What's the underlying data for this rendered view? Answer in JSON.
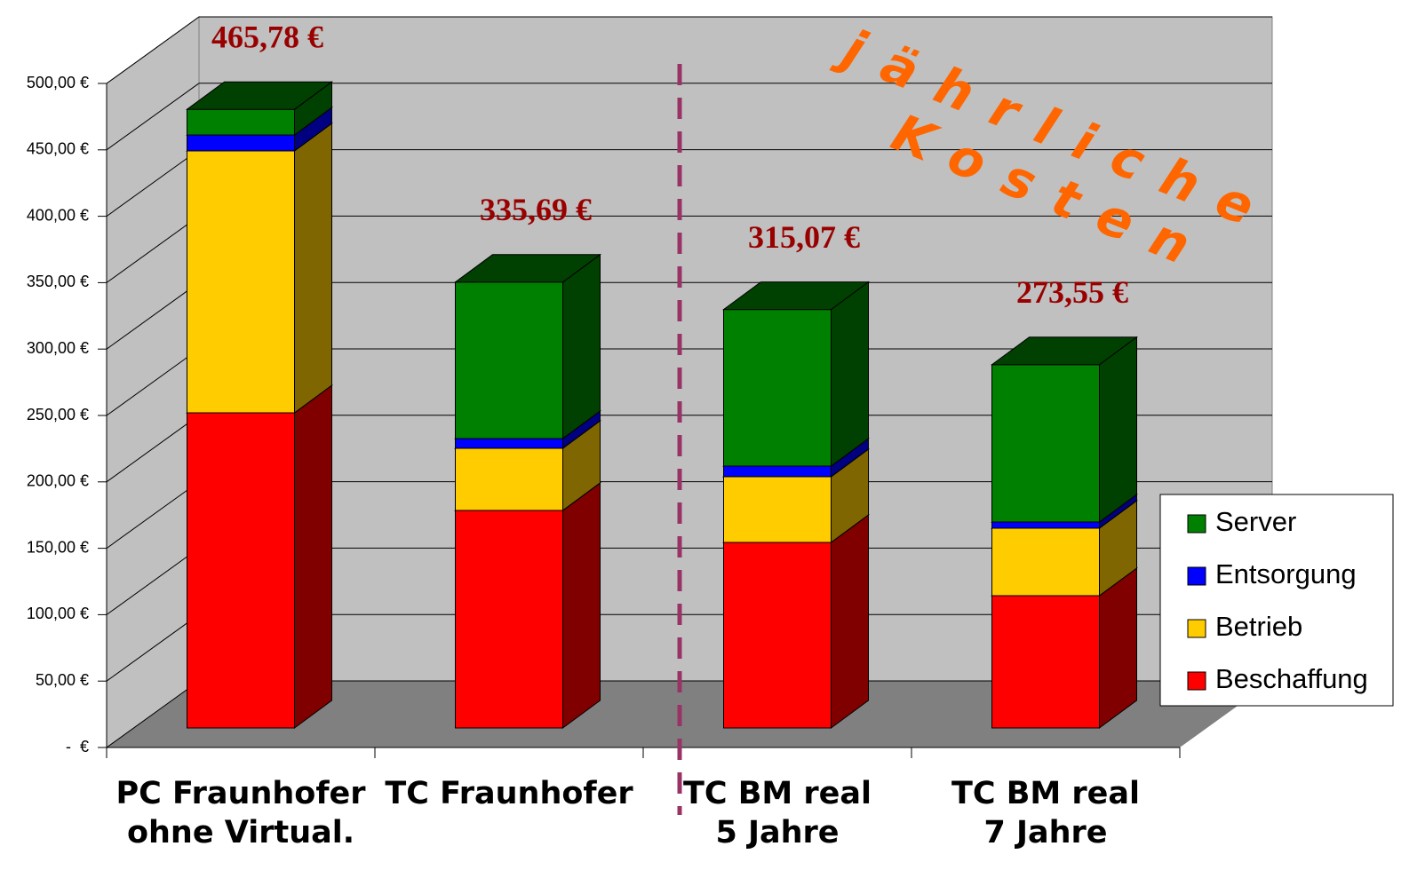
{
  "chart_data": {
    "type": "bar3d_stacked",
    "categories": [
      "PC Fraunhofer\nohne Virtual.",
      "TC Fraunhofer",
      "TC BM real\n5 Jahre",
      "TC BM real\n7 Jahre"
    ],
    "series": [
      {
        "name": "Beschaffung",
        "color": "#ff0000",
        "values": [
          237.3,
          163.8,
          139.7,
          99.6
        ]
      },
      {
        "name": "Betrieb",
        "color": "#ffcc00",
        "values": [
          197.2,
          46.8,
          49.5,
          50.8
        ]
      },
      {
        "name": "Entsorgung",
        "color": "#0000ff",
        "values": [
          12.0,
          7.3,
          8.0,
          4.7
        ]
      },
      {
        "name": "Server",
        "color": "#008000",
        "values": [
          19.28,
          117.79,
          117.87,
          118.45
        ]
      }
    ],
    "totals": [
      465.78,
      335.69,
      315.07,
      273.55
    ],
    "total_labels": [
      "465,78 €",
      "335,69 €",
      "315,07 €",
      "273,55 €"
    ],
    "annotations": [
      "jährliche",
      "Kosten"
    ],
    "ylim": [
      0,
      500
    ],
    "yticks": [
      {
        "value": 0,
        "label": "-  €"
      },
      {
        "value": 50,
        "label": "50,00 €"
      },
      {
        "value": 100,
        "label": "100,00 €"
      },
      {
        "value": 150,
        "label": "150,00 €"
      },
      {
        "value": 200,
        "label": "200,00 €"
      },
      {
        "value": 250,
        "label": "250,00 €"
      },
      {
        "value": 300,
        "label": "300,00 €"
      },
      {
        "value": 350,
        "label": "350,00 €"
      },
      {
        "value": 400,
        "label": "400,00 €"
      },
      {
        "value": 450,
        "label": "450,00 €"
      },
      {
        "value": 500,
        "label": "500,00 €"
      }
    ],
    "grid": true
  }
}
